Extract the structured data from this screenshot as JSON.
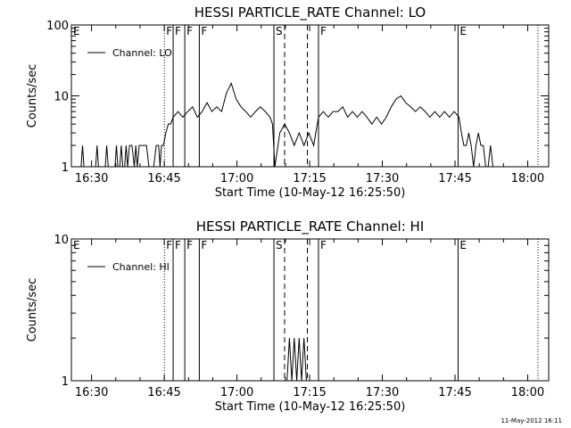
{
  "chart_data": [
    {
      "type": "line",
      "title": "HESSI PARTICLE_RATE Channel: LO",
      "xlabel": "Start Time (10-May-12 16:25:50)",
      "ylabel": "Counts/sec",
      "yscale": "log",
      "ylim": [
        1,
        100
      ],
      "xlim_minutes_after_16_25_50": [
        0,
        98.5
      ],
      "xtick_labels": [
        "16:30",
        "16:45",
        "17:00",
        "17:15",
        "17:30",
        "17:45",
        "18:00"
      ],
      "ytick_labels": [
        "1",
        "10",
        "100"
      ],
      "legend": {
        "label": "Channel: LO",
        "placement": "top-left"
      },
      "markers": [
        {
          "label": "E",
          "style": "dotted",
          "x_min": 0
        },
        {
          "label": "F",
          "style": "dotted",
          "x_min": 19.2
        },
        {
          "label": "F",
          "style": "solid",
          "x_min": 21.0
        },
        {
          "label": "F",
          "style": "solid",
          "x_min": 23.4
        },
        {
          "label": "F",
          "style": "solid",
          "x_min": 26.4
        },
        {
          "label": "S",
          "style": "solid",
          "x_min": 41.8
        },
        {
          "label": "",
          "style": "dashed",
          "x_min": 44.0
        },
        {
          "label": "",
          "style": "dashed",
          "x_min": 48.7
        },
        {
          "label": "F",
          "style": "solid",
          "x_min": 51.0
        },
        {
          "label": "E",
          "style": "solid",
          "x_min": 79.8
        },
        {
          "label": "",
          "style": "dotted",
          "x_min": 96.3
        }
      ],
      "series": [
        {
          "name": "Channel: LO",
          "x": [
            0,
            2,
            2.3,
            2.6,
            5,
            5.3,
            5.6,
            7,
            7.3,
            7.6,
            9,
            9.3,
            9.6,
            10,
            10.3,
            10.6,
            11,
            11.3,
            11.6,
            12,
            12.5,
            13,
            13.3,
            13.6,
            14,
            14.3,
            14.6,
            15,
            15.5,
            16,
            17,
            17.5,
            18,
            18.3,
            18.6,
            19,
            19.5,
            20,
            20.5,
            21,
            22,
            23,
            24,
            25,
            26,
            27,
            28,
            29,
            30,
            31,
            32,
            33,
            34,
            35,
            36,
            37,
            38,
            39,
            40,
            41,
            41.5,
            42,
            43,
            44,
            45,
            46,
            47,
            48,
            49,
            50,
            51,
            52,
            53,
            54,
            55,
            56,
            57,
            58,
            59,
            60,
            61,
            62,
            63,
            64,
            65,
            66,
            67,
            68,
            69,
            70,
            71,
            72,
            73,
            74,
            75,
            76,
            77,
            78,
            79,
            80,
            80.5,
            81,
            81.5,
            82,
            82.5,
            83,
            83.5,
            84,
            84.5,
            85,
            85.5,
            86,
            86.5,
            87,
            87.5,
            88
          ],
          "values": [
            1,
            1,
            2,
            1,
            1,
            2,
            1,
            1,
            2,
            1,
            1,
            2,
            1,
            1,
            2,
            1,
            1,
            2,
            1,
            2,
            2,
            1,
            2,
            1,
            2,
            2,
            2,
            2,
            2,
            1,
            1,
            2,
            2,
            1,
            2,
            2,
            3,
            4,
            4,
            5,
            6,
            5,
            6,
            7,
            5,
            6,
            8,
            6,
            7,
            6,
            11,
            15,
            9,
            7,
            6,
            5,
            6,
            7,
            6,
            5,
            4,
            1,
            3,
            4,
            3,
            2,
            3,
            2,
            3,
            2,
            5,
            6,
            5,
            6,
            6,
            7,
            5,
            6,
            5,
            6,
            5,
            4,
            5,
            4,
            5,
            7,
            9,
            10,
            8,
            7,
            6,
            7,
            6,
            5,
            6,
            5,
            6,
            5,
            6,
            5,
            3,
            2,
            2,
            3,
            2,
            1,
            2,
            3,
            2,
            2,
            1,
            1,
            2,
            1,
            1,
            1
          ]
        }
      ]
    },
    {
      "type": "line",
      "title": "HESSI PARTICLE_RATE Channel: HI",
      "xlabel": "Start Time (10-May-12 16:25:50)",
      "ylabel": "Counts/sec",
      "yscale": "log",
      "ylim": [
        1,
        10
      ],
      "xlim_minutes_after_16_25_50": [
        0,
        98.5
      ],
      "xtick_labels": [
        "16:30",
        "16:45",
        "17:00",
        "17:15",
        "17:30",
        "17:45",
        "18:00"
      ],
      "ytick_labels": [
        "1",
        "10"
      ],
      "legend": {
        "label": "Channel: HI",
        "placement": "top-left"
      },
      "markers": [
        {
          "label": "E",
          "style": "dotted",
          "x_min": 0
        },
        {
          "label": "F",
          "style": "dotted",
          "x_min": 19.2
        },
        {
          "label": "F",
          "style": "solid",
          "x_min": 21.0
        },
        {
          "label": "F",
          "style": "solid",
          "x_min": 23.4
        },
        {
          "label": "F",
          "style": "solid",
          "x_min": 26.4
        },
        {
          "label": "S",
          "style": "solid",
          "x_min": 41.8
        },
        {
          "label": "",
          "style": "dashed",
          "x_min": 44.0
        },
        {
          "label": "",
          "style": "dashed",
          "x_min": 48.7
        },
        {
          "label": "F",
          "style": "solid",
          "x_min": 51.0
        },
        {
          "label": "E",
          "style": "solid",
          "x_min": 79.8
        },
        {
          "label": "",
          "style": "dotted",
          "x_min": 96.3
        }
      ],
      "series": [
        {
          "name": "Channel: HI",
          "x": [
            0,
            44.5,
            45,
            45.5,
            46,
            46.5,
            47,
            47.5,
            48,
            48.5,
            98.5
          ],
          "values": [
            1,
            1,
            2,
            1,
            2,
            1,
            2,
            1,
            2,
            1,
            1
          ]
        }
      ]
    }
  ],
  "footer": {
    "timestamp": "11-May-2012 16:11"
  }
}
